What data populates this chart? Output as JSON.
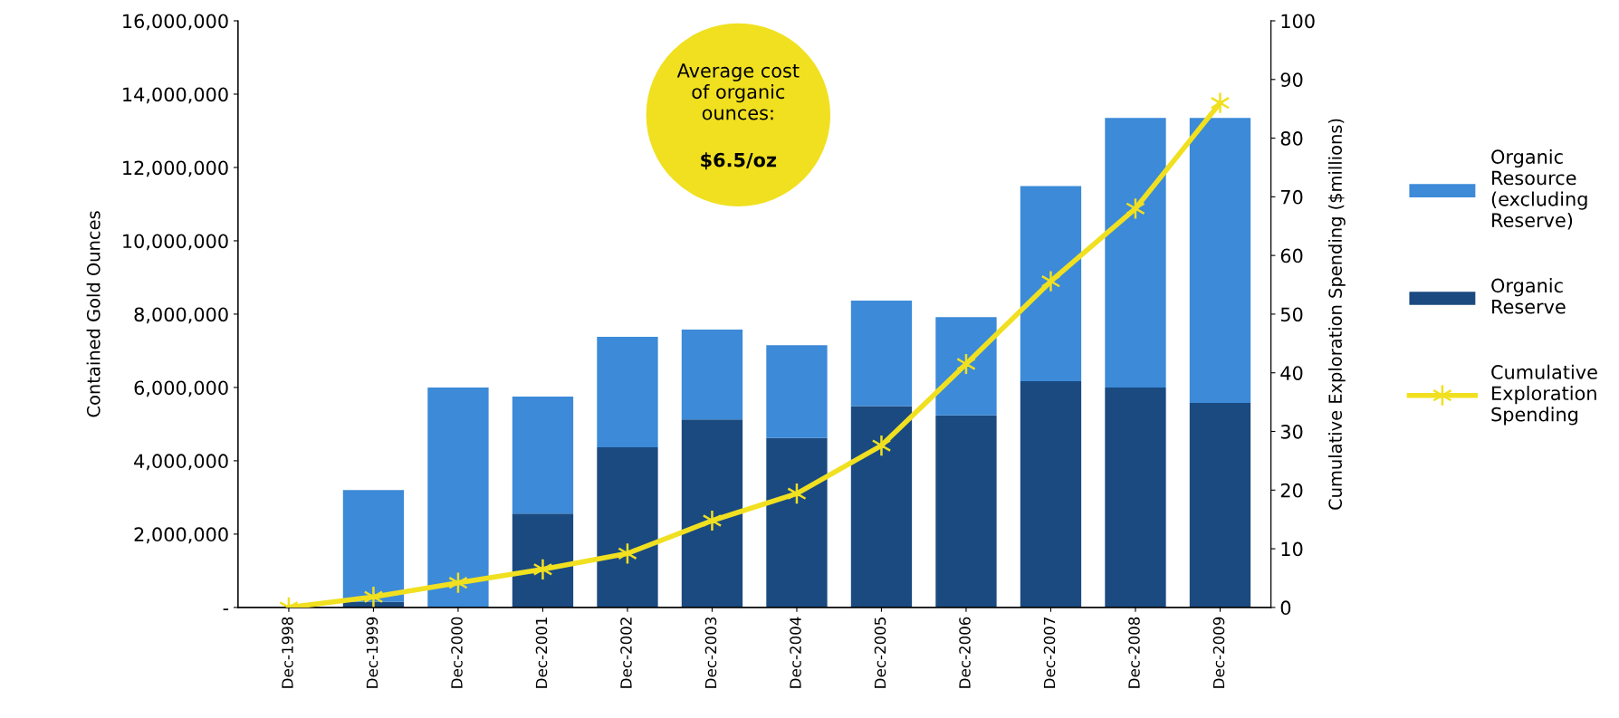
{
  "chart_data": {
    "type": "bar",
    "stacked": true,
    "ylabel": "Contained Gold Ounces",
    "y2label": "Cumulative Exploration Spending ($millions)",
    "categories": [
      "Dec-1998",
      "Dec-1999",
      "Dec-2000",
      "Dec-2001",
      "Dec-2002",
      "Dec-2003",
      "Dec-2004",
      "Dec-2005",
      "Dec-2006",
      "Dec-2007",
      "Dec-2008",
      "Dec-2009"
    ],
    "series": [
      {
        "name": "Organic\nReserve",
        "color": "#1a4a80",
        "values": [
          0,
          150000,
          0,
          2560000,
          4370000,
          5130000,
          4620000,
          5490000,
          5240000,
          6170000,
          6000000,
          5580000
        ]
      },
      {
        "name": "Organic\nResource\n(excluding\nReserve)",
        "color": "#3c8ad8",
        "values": [
          0,
          3050000,
          6000000,
          3190000,
          3010000,
          2450000,
          2530000,
          2880000,
          2680000,
          5320000,
          7350000,
          7770000
        ]
      },
      {
        "name": "Cumulative\nExploration\nSpending",
        "type": "line",
        "axis": "y2",
        "color": "#f0e020",
        "marker": "cross",
        "values": [
          0,
          1.8,
          4.2,
          6.5,
          9.2,
          14.8,
          19.4,
          27.6,
          41.5,
          55.6,
          68,
          86
        ]
      }
    ],
    "ylim": [
      0,
      16000000
    ],
    "yticks": [
      {
        "value": 0,
        "label": "-"
      },
      {
        "value": 2000000,
        "label": "2,000,000"
      },
      {
        "value": 4000000,
        "label": "4,000,000"
      },
      {
        "value": 6000000,
        "label": "6,000,000"
      },
      {
        "value": 8000000,
        "label": "8,000,000"
      },
      {
        "value": 10000000,
        "label": "10,000,000"
      },
      {
        "value": 12000000,
        "label": "12,000,000"
      },
      {
        "value": 14000000,
        "label": "14,000,000"
      },
      {
        "value": 16000000,
        "label": "16,000,000"
      }
    ],
    "y2lim": [
      0,
      100
    ],
    "y2ticks": [
      0,
      10,
      20,
      30,
      40,
      50,
      60,
      70,
      80,
      90,
      100
    ],
    "annotations": [
      "Average cost\nof organic\nounces:",
      "$6.5/oz"
    ],
    "legend": "right",
    "grid": false
  }
}
